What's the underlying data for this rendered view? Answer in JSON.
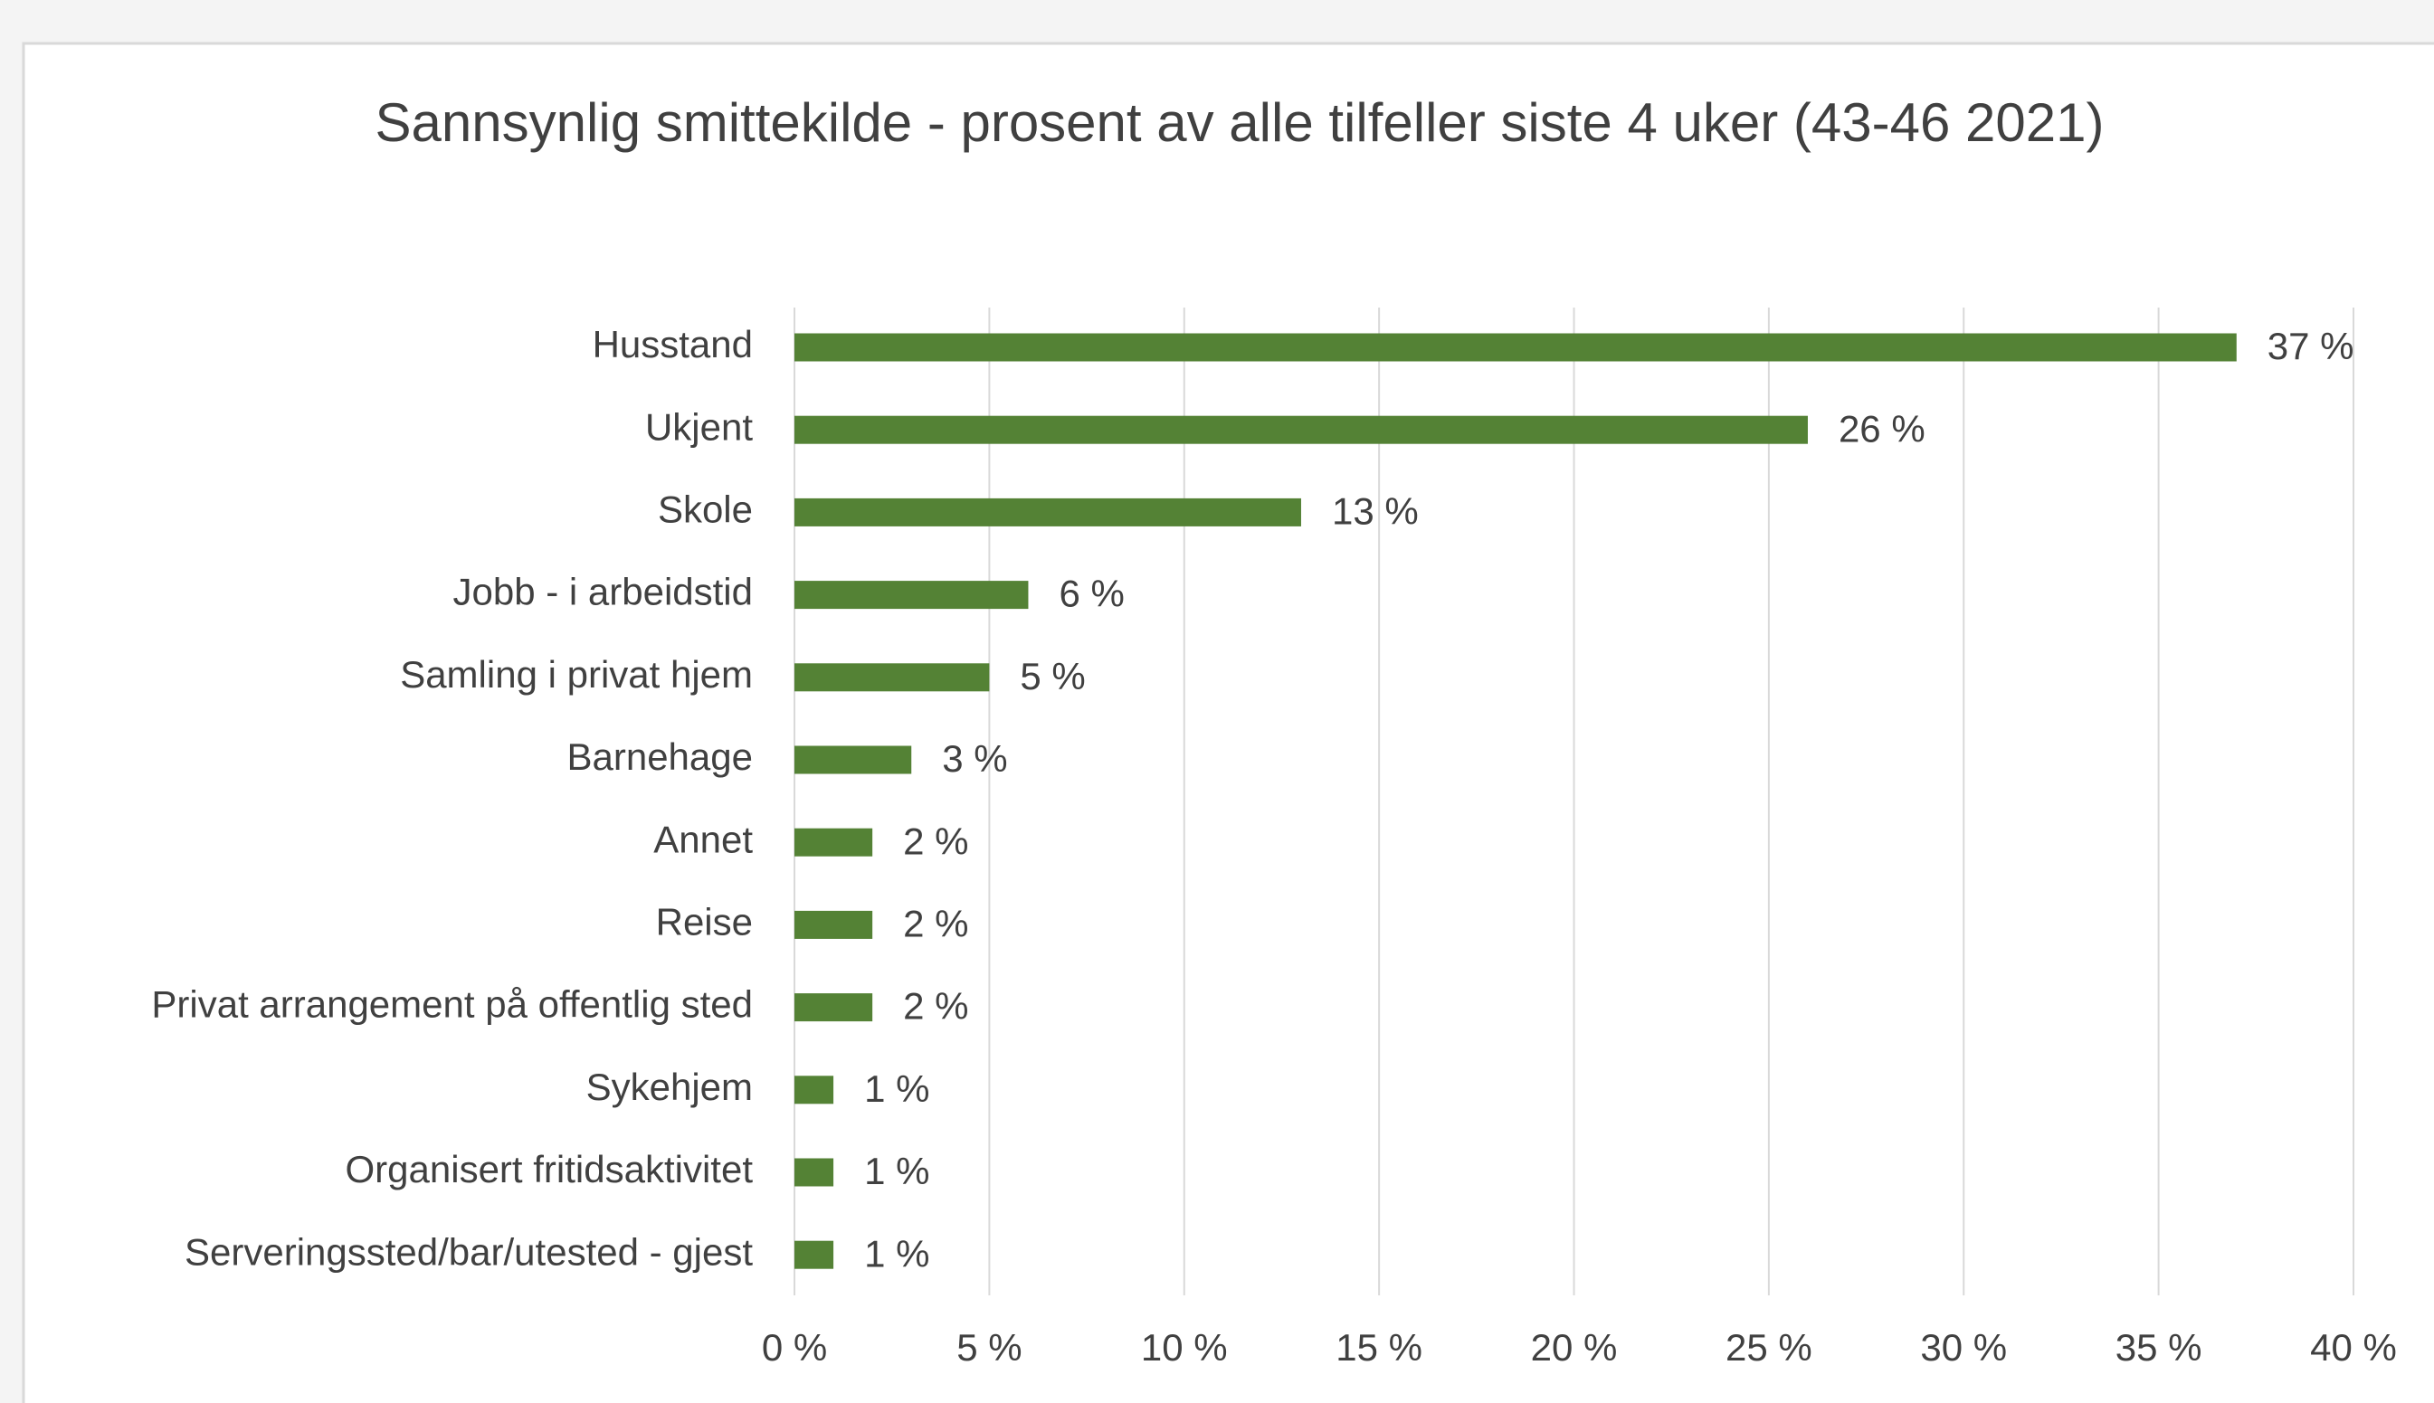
{
  "chart_data": {
    "type": "bar",
    "orientation": "horizontal",
    "title": "Sannsynlig smittekilde - prosent av alle tilfeller siste 4 uker (43-46 2021)",
    "categories": [
      "Husstand",
      "Ukjent",
      "Skole",
      "Jobb - i arbeidstid",
      "Samling i privat hjem",
      "Barnehage",
      "Annet",
      "Reise",
      "Privat arrangement på offentlig sted",
      "Sykehjem",
      "Organisert fritidsaktivitet",
      "Serveringssted/bar/utested - gjest"
    ],
    "values": [
      37,
      26,
      13,
      6,
      5,
      3,
      2,
      2,
      2,
      1,
      1,
      1
    ],
    "value_labels": [
      "37 %",
      "26 %",
      "13 %",
      "6 %",
      "5 %",
      "3 %",
      "2 %",
      "2 %",
      "2 %",
      "1 %",
      "1 %",
      "1 %"
    ],
    "color": "#548235",
    "xlim": [
      0,
      40
    ],
    "xticks": [
      {
        "value": 0,
        "label": "0 %"
      },
      {
        "value": 5,
        "label": "5 %"
      },
      {
        "value": 10,
        "label": "10 %"
      },
      {
        "value": 15,
        "label": "15 %"
      },
      {
        "value": 20,
        "label": "20 %"
      },
      {
        "value": 25,
        "label": "25 %"
      },
      {
        "value": 30,
        "label": "30 %"
      },
      {
        "value": 35,
        "label": "35 %"
      },
      {
        "value": 40,
        "label": "40 %"
      }
    ],
    "grid": true
  }
}
